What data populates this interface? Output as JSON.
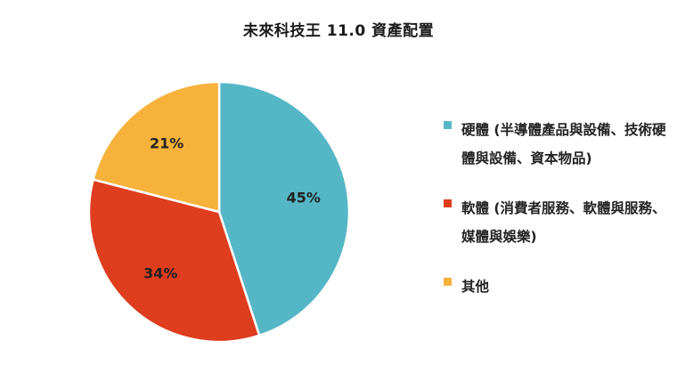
{
  "chart_data": {
    "type": "pie",
    "title": "未來科技王 11.0 資產配置",
    "slices": [
      {
        "label": "硬體 (半導體產品與設備、技術硬體與設備、資本物品)",
        "value": 45,
        "value_label": "45%",
        "color": "#55b7c6"
      },
      {
        "label": "軟體 (消費者服務、軟體與服務、媒體與娛樂)",
        "value": 34,
        "value_label": "34%",
        "color": "#de3d1e"
      },
      {
        "label": "其他",
        "value": 21,
        "value_label": "21%",
        "color": "#f7b23b"
      }
    ],
    "legend_position": "right"
  }
}
